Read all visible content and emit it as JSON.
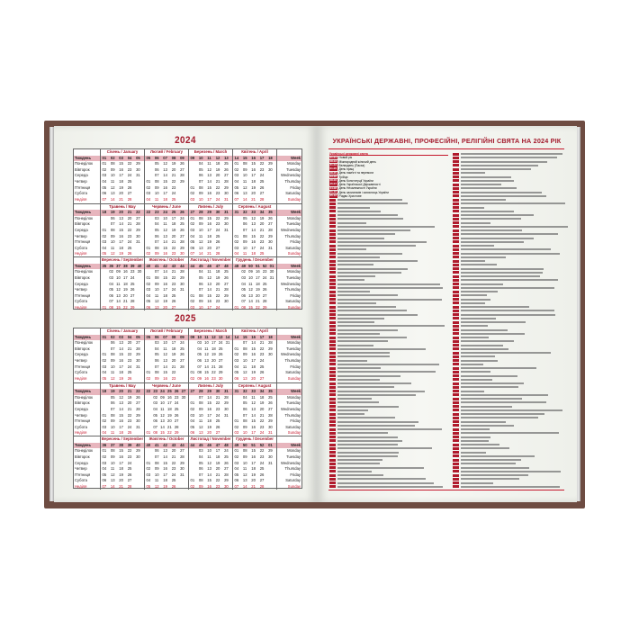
{
  "calendar": {
    "years": [
      2024,
      2025
    ],
    "week_label_ua": "Тиждень",
    "week_label_en": "Week",
    "weekdays_ua": [
      "Понеділок",
      "Вівторок",
      "Середа",
      "Четвер",
      "П'ятниця",
      "Субота",
      "Неділя"
    ],
    "weekdays_en": [
      "Monday",
      "Tuesday",
      "Wednesday",
      "Thursday",
      "Friday",
      "Saturday",
      "Sunday"
    ],
    "months": [
      "Січень / January",
      "Лютий / February",
      "Березень / March",
      "Квітень / April",
      "Травень / May",
      "Червень / June",
      "Липень / July",
      "Серпень / August",
      "Вересень / September",
      "Жовтень / October",
      "Листопад / November",
      "Грудень / December"
    ]
  },
  "holidays": {
    "title": "УКРАЇНСЬКІ ДЕРЖАВНІ, ПРОФЕСІЙНІ, РЕЛІГІЙНІ СВЯТА НА 2024 РІК",
    "section_state": "Українські державні свята",
    "state": [
      {
        "date": "01.01",
        "name": "Новий рік"
      },
      {
        "date": "08.03",
        "name": "Міжнародний жіночий день"
      },
      {
        "date": "31.03",
        "name": "Великдень (Пасха)"
      },
      {
        "date": "01.05",
        "name": "День праці"
      },
      {
        "date": "08.05",
        "name": "День пам'яті та перемоги"
      },
      {
        "date": "23.06",
        "name": "Трійця"
      },
      {
        "date": "28.06",
        "name": "День Конституції України"
      },
      {
        "date": "15.07",
        "name": "День Української Державності"
      },
      {
        "date": "24.08",
        "name": "День Незалежності України"
      },
      {
        "date": "01.10",
        "name": "День захисників і захисниць України"
      },
      {
        "date": "25.12",
        "name": "Різдво Христове"
      }
    ]
  },
  "colors": {
    "cover": "#6e4c42",
    "accent": "#a3192b",
    "week_row": "#e7b5bd"
  }
}
